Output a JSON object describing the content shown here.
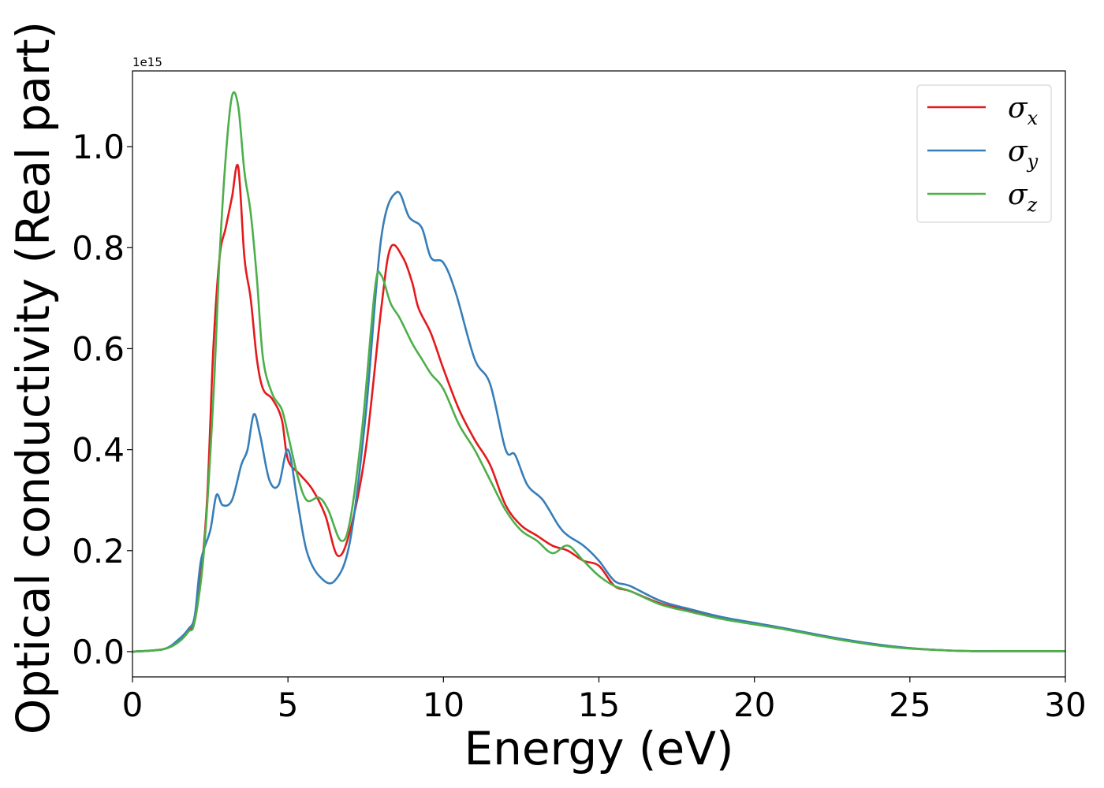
{
  "chart_data": {
    "type": "line",
    "xlabel": "Energy (eV)",
    "ylabel": "Optical conductivity (Real part)",
    "y_offset_text": "1e15",
    "xlim": [
      0,
      30
    ],
    "ylim": [
      -0.05,
      1.15
    ],
    "x_ticks": [
      0,
      5,
      10,
      15,
      20,
      25,
      30
    ],
    "x_tick_labels": [
      "0",
      "5",
      "10",
      "15",
      "20",
      "25",
      "30"
    ],
    "y_ticks": [
      0.0,
      0.2,
      0.4,
      0.6,
      0.8,
      1.0
    ],
    "y_tick_labels": [
      "0.0",
      "0.2",
      "0.4",
      "0.6",
      "0.8",
      "1.0"
    ],
    "grid": false,
    "legend_position": "top-right",
    "series": [
      {
        "name": "σx",
        "legend_base": "σ",
        "legend_sub": "x",
        "color": "#e41a1c",
        "points": [
          [
            0,
            0
          ],
          [
            1,
            0.005
          ],
          [
            1.5,
            0.02
          ],
          [
            1.8,
            0.04
          ],
          [
            2.0,
            0.06
          ],
          [
            2.2,
            0.15
          ],
          [
            2.4,
            0.3
          ],
          [
            2.6,
            0.6
          ],
          [
            2.8,
            0.78
          ],
          [
            3.0,
            0.84
          ],
          [
            3.2,
            0.9
          ],
          [
            3.4,
            0.96
          ],
          [
            3.6,
            0.78
          ],
          [
            3.8,
            0.7
          ],
          [
            4.0,
            0.58
          ],
          [
            4.2,
            0.52
          ],
          [
            4.5,
            0.5
          ],
          [
            4.8,
            0.46
          ],
          [
            5.0,
            0.38
          ],
          [
            5.4,
            0.35
          ],
          [
            5.8,
            0.32
          ],
          [
            6.2,
            0.27
          ],
          [
            6.6,
            0.19
          ],
          [
            7.0,
            0.24
          ],
          [
            7.5,
            0.4
          ],
          [
            8.0,
            0.68
          ],
          [
            8.3,
            0.8
          ],
          [
            8.7,
            0.78
          ],
          [
            9.0,
            0.73
          ],
          [
            9.2,
            0.68
          ],
          [
            9.6,
            0.63
          ],
          [
            10.0,
            0.56
          ],
          [
            10.5,
            0.48
          ],
          [
            11.0,
            0.42
          ],
          [
            11.5,
            0.37
          ],
          [
            12.0,
            0.29
          ],
          [
            12.5,
            0.25
          ],
          [
            13.0,
            0.23
          ],
          [
            13.5,
            0.21
          ],
          [
            14.0,
            0.2
          ],
          [
            14.5,
            0.18
          ],
          [
            15.0,
            0.17
          ],
          [
            15.5,
            0.13
          ],
          [
            16.0,
            0.12
          ],
          [
            17.0,
            0.095
          ],
          [
            18.0,
            0.08
          ],
          [
            19.0,
            0.065
          ],
          [
            20.0,
            0.055
          ],
          [
            21.0,
            0.045
          ],
          [
            22.0,
            0.033
          ],
          [
            23.0,
            0.022
          ],
          [
            24.0,
            0.013
          ],
          [
            25.0,
            0.007
          ],
          [
            26.0,
            0.003
          ],
          [
            27.0,
            0.001
          ],
          [
            28.0,
            0.001
          ],
          [
            30.0,
            0.001
          ]
        ]
      },
      {
        "name": "σy",
        "legend_base": "σ",
        "legend_sub": "y",
        "color": "#377eb8",
        "points": [
          [
            0,
            0
          ],
          [
            1,
            0.005
          ],
          [
            1.5,
            0.025
          ],
          [
            1.8,
            0.045
          ],
          [
            2.0,
            0.07
          ],
          [
            2.2,
            0.18
          ],
          [
            2.5,
            0.24
          ],
          [
            2.7,
            0.31
          ],
          [
            2.9,
            0.29
          ],
          [
            3.2,
            0.3
          ],
          [
            3.5,
            0.37
          ],
          [
            3.7,
            0.4
          ],
          [
            3.9,
            0.47
          ],
          [
            4.1,
            0.43
          ],
          [
            4.4,
            0.34
          ],
          [
            4.7,
            0.33
          ],
          [
            5.0,
            0.4
          ],
          [
            5.3,
            0.3
          ],
          [
            5.6,
            0.2
          ],
          [
            6.0,
            0.15
          ],
          [
            6.5,
            0.14
          ],
          [
            7.0,
            0.22
          ],
          [
            7.5,
            0.47
          ],
          [
            8.0,
            0.82
          ],
          [
            8.5,
            0.91
          ],
          [
            8.9,
            0.86
          ],
          [
            9.3,
            0.84
          ],
          [
            9.6,
            0.78
          ],
          [
            10.0,
            0.77
          ],
          [
            10.4,
            0.71
          ],
          [
            11.0,
            0.58
          ],
          [
            11.5,
            0.53
          ],
          [
            12.0,
            0.4
          ],
          [
            12.3,
            0.39
          ],
          [
            12.7,
            0.33
          ],
          [
            13.2,
            0.3
          ],
          [
            13.7,
            0.25
          ],
          [
            14.0,
            0.23
          ],
          [
            14.5,
            0.21
          ],
          [
            15.0,
            0.18
          ],
          [
            15.5,
            0.14
          ],
          [
            16.0,
            0.13
          ],
          [
            17.0,
            0.1
          ],
          [
            18.0,
            0.083
          ],
          [
            19.0,
            0.068
          ],
          [
            20.0,
            0.057
          ],
          [
            21.0,
            0.046
          ],
          [
            22.0,
            0.034
          ],
          [
            23.0,
            0.023
          ],
          [
            24.0,
            0.014
          ],
          [
            25.0,
            0.007
          ],
          [
            26.0,
            0.003
          ],
          [
            27.0,
            0.001
          ],
          [
            28.0,
            0.001
          ],
          [
            30.0,
            0.001
          ]
        ]
      },
      {
        "name": "σz",
        "legend_base": "σ",
        "legend_sub": "z",
        "color": "#4daf4a",
        "points": [
          [
            0,
            0
          ],
          [
            1,
            0.005
          ],
          [
            1.5,
            0.02
          ],
          [
            1.8,
            0.04
          ],
          [
            2.0,
            0.06
          ],
          [
            2.3,
            0.2
          ],
          [
            2.6,
            0.5
          ],
          [
            2.8,
            0.78
          ],
          [
            3.0,
            0.98
          ],
          [
            3.2,
            1.1
          ],
          [
            3.4,
            1.08
          ],
          [
            3.6,
            0.95
          ],
          [
            3.8,
            0.87
          ],
          [
            4.0,
            0.74
          ],
          [
            4.2,
            0.58
          ],
          [
            4.5,
            0.51
          ],
          [
            4.8,
            0.48
          ],
          [
            5.0,
            0.43
          ],
          [
            5.3,
            0.35
          ],
          [
            5.6,
            0.3
          ],
          [
            6.0,
            0.305
          ],
          [
            6.3,
            0.28
          ],
          [
            6.7,
            0.22
          ],
          [
            7.0,
            0.26
          ],
          [
            7.4,
            0.45
          ],
          [
            7.8,
            0.72
          ],
          [
            8.0,
            0.745
          ],
          [
            8.3,
            0.69
          ],
          [
            8.6,
            0.66
          ],
          [
            9.0,
            0.61
          ],
          [
            9.3,
            0.58
          ],
          [
            9.6,
            0.55
          ],
          [
            10.0,
            0.52
          ],
          [
            10.5,
            0.45
          ],
          [
            11.0,
            0.4
          ],
          [
            11.5,
            0.34
          ],
          [
            12.0,
            0.28
          ],
          [
            12.5,
            0.24
          ],
          [
            13.0,
            0.22
          ],
          [
            13.5,
            0.195
          ],
          [
            14.0,
            0.21
          ],
          [
            14.5,
            0.18
          ],
          [
            15.0,
            0.15
          ],
          [
            15.5,
            0.13
          ],
          [
            16.0,
            0.12
          ],
          [
            17.0,
            0.093
          ],
          [
            18.0,
            0.078
          ],
          [
            19.0,
            0.064
          ],
          [
            20.0,
            0.054
          ],
          [
            21.0,
            0.044
          ],
          [
            22.0,
            0.032
          ],
          [
            23.0,
            0.021
          ],
          [
            24.0,
            0.012
          ],
          [
            25.0,
            0.006
          ],
          [
            26.0,
            0.003
          ],
          [
            27.0,
            0.001
          ],
          [
            28.0,
            0.001
          ],
          [
            30.0,
            0.001
          ]
        ]
      }
    ]
  }
}
